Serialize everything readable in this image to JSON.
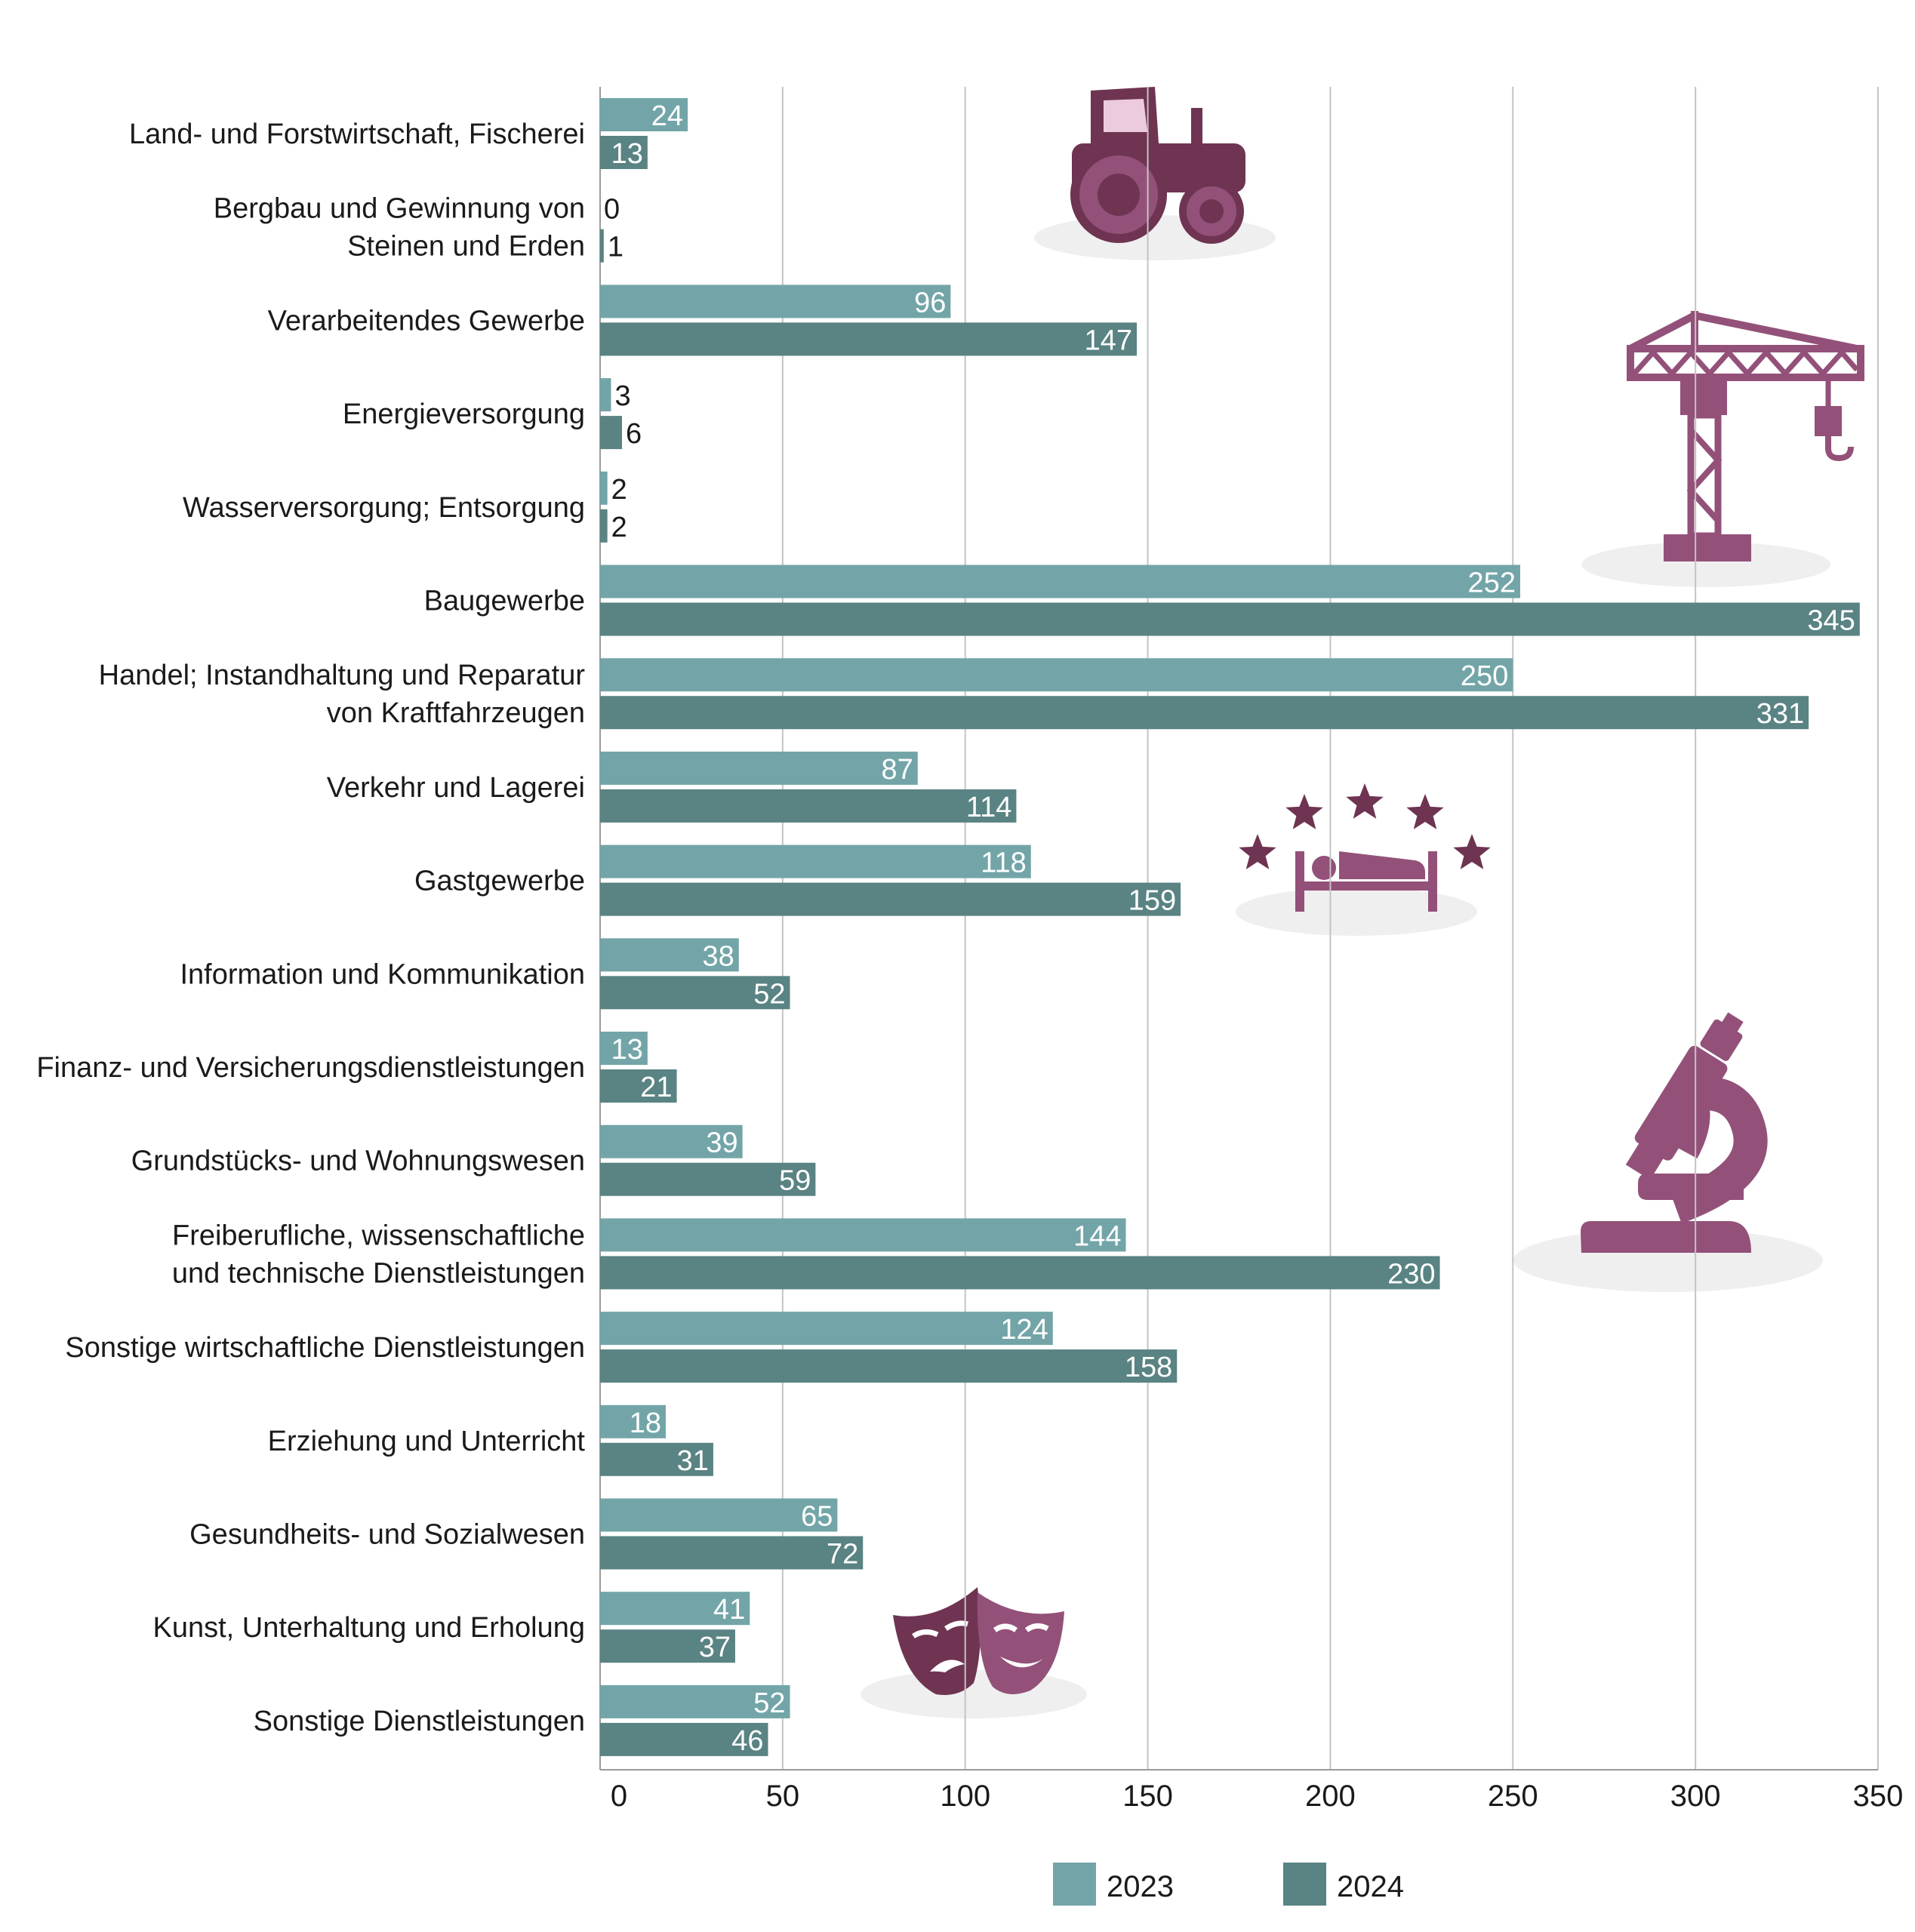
{
  "chart_data": {
    "type": "bar",
    "orientation": "horizontal",
    "categories": [
      "Land- und Forstwirtschaft, Fischerei",
      "Bergbau und Gewinnung von\nSteinen und Erden",
      "Verarbeitendes Gewerbe",
      "Energieversorgung",
      "Wasserversorgung; Entsorgung",
      "Baugewerbe",
      "Handel; Instandhaltung und Reparatur\nvon Kraftfahrzeugen",
      "Verkehr und Lagerei",
      "Gastgewerbe",
      "Information und Kommunikation",
      "Finanz- und Versicherungsdienstleistungen",
      "Grundstücks- und Wohnungswesen",
      "Freiberufliche, wissenschaftliche\nund technische Dienstleistungen",
      "Sonstige wirtschaftliche Dienstleistungen",
      "Erziehung und Unterricht",
      "Gesundheits- und Sozialwesen",
      "Kunst, Unterhaltung und Erholung",
      "Sonstige Dienstleistungen"
    ],
    "series": [
      {
        "name": "2023",
        "color": "#73a5a8",
        "values": [
          24,
          0,
          96,
          3,
          2,
          252,
          250,
          87,
          118,
          38,
          13,
          39,
          144,
          124,
          18,
          65,
          41,
          52
        ]
      },
      {
        "name": "2024",
        "color": "#5a8383",
        "values": [
          13,
          1,
          147,
          6,
          2,
          345,
          331,
          114,
          159,
          52,
          21,
          59,
          230,
          158,
          31,
          72,
          37,
          46
        ]
      }
    ],
    "xlim": [
      0,
      350
    ],
    "xticks": [
      0,
      50,
      100,
      150,
      200,
      250,
      300,
      350
    ],
    "grid": true,
    "legend_position": "bottom-center",
    "icon_color": "#935179",
    "icons": [
      "tractor-icon",
      "crane-icon",
      "hotel-bed-stars-icon",
      "microscope-icon",
      "theater-masks-icon"
    ]
  }
}
